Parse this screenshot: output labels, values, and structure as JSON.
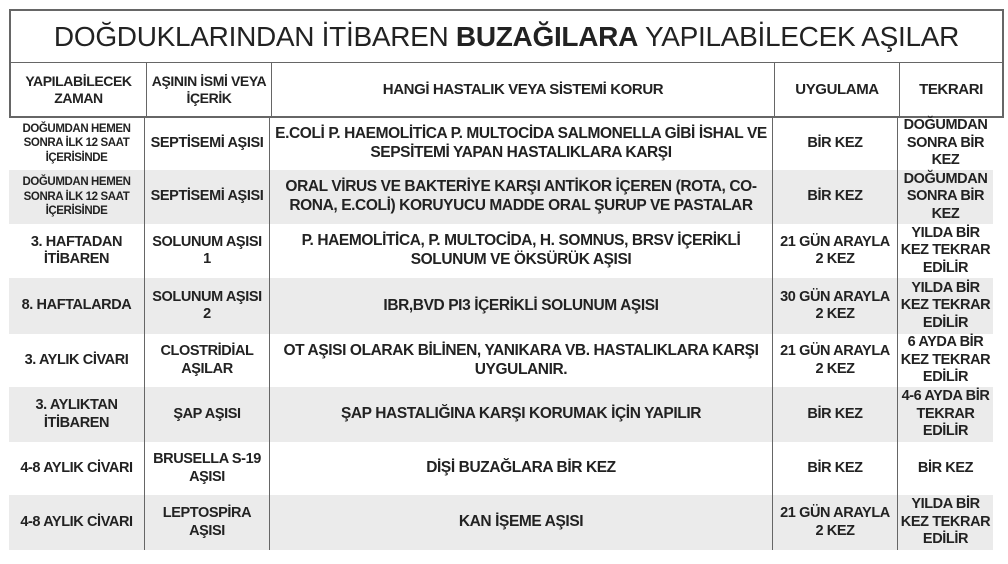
{
  "title": {
    "part1": "DOĞDUKLARINDAN İTİBAREN ",
    "bold": "BUZAĞILARA",
    "part2": " YAPILABİLECEK AŞILAR"
  },
  "columns": {
    "zaman": "YAPILABİLECEK ZAMAN",
    "asi": "AŞININ İSMİ VEYA İÇERİK",
    "hastalik": "HANGİ HASTALIK VEYA SİSTEMİ KORUR",
    "uygulama": "UYGULAMA",
    "tekrar": "TEKRARI"
  },
  "rows": [
    {
      "zaman": "DOĞUMDAN HEMEN SONRA İLK 12 SAAT İÇERİSİNDE",
      "asi": "SEPTİSEMİ AŞISI",
      "hastalik": "E.COLİ P. HAEMOLİTİCA P. MULTOCİDA SALMONELLA GİBİ İSHAL VE SEPSİTEMİ YAPAN HASTALIKLARA KARŞI",
      "uygulama": "BİR KEZ",
      "tekrar": "DOĞUMDAN SONRA BİR KEZ"
    },
    {
      "zaman": "DOĞUMDAN HEMEN SONRA İLK 12 SAAT İÇERİSİNDE",
      "asi": "SEPTİSEMİ AŞISI",
      "hastalik": "ORAL VİRUS VE BAKTERİYE KARŞI ANTİKOR İÇEREN (ROTA, CO-RONA, E.COLİ) KORUYUCU MADDE ORAL ŞURUP VE PASTALAR",
      "uygulama": "BİR KEZ",
      "tekrar": "DOĞUMDAN SONRA BİR KEZ"
    },
    {
      "zaman": "3. HAFTADAN İTİBAREN",
      "asi": "SOLUNUM AŞISI 1",
      "hastalik": "P. HAEMOLİTİCA, P. MULTOCİDA, H. SOMNUS, BRSV İÇERİKLİ SOLUNUM VE ÖKSÜRÜK AŞISI",
      "uygulama": "21 GÜN ARAYLA 2 KEZ",
      "tekrar": "YILDA BİR KEZ TEKRAR EDİLİR"
    },
    {
      "zaman": "8. HAFTALARDA",
      "asi": "SOLUNUM AŞISI 2",
      "hastalik": "IBR,BVD PI3 İÇERİKLİ SOLUNUM AŞISI",
      "uygulama": "30 GÜN ARAYLA 2 KEZ",
      "tekrar": "YILDA BİR KEZ TEKRAR EDİLİR"
    },
    {
      "zaman": "3. AYLIK CİVARI",
      "asi": "CLOSTRİDİAL AŞILAR",
      "hastalik": "OT AŞISI OLARAK BİLİNEN, YANIKARA VB. HASTALIKLARA KARŞI UYGULANIR.",
      "uygulama": "21 GÜN ARAYLA 2 KEZ",
      "tekrar": "6 AYDA BİR KEZ TEKRAR EDİLİR"
    },
    {
      "zaman": "3. AYLIKTAN İTİBAREN",
      "asi": "ŞAP AŞISI",
      "hastalik": "ŞAP HASTALIĞINA KARŞI KORUMAK İÇİN YAPILIR",
      "uygulama": "BİR KEZ",
      "tekrar": "4-6 AYDA BİR TEKRAR EDİLİR"
    },
    {
      "zaman": "4-8 AYLIK CİVARI",
      "asi": "BRUSELLA S-19 AŞISI",
      "hastalik": "DİŞİ BUZAĞLARA BİR KEZ",
      "uygulama": "BİR KEZ",
      "tekrar": "BİR KEZ"
    },
    {
      "zaman": "4-8 AYLIK CİVARI",
      "asi": "LEPTOSPİRA AŞISI",
      "hastalik": "KAN İŞEME AŞISI",
      "uygulama": "21 GÜN ARAYLA 2 KEZ",
      "tekrar": "YILDA BİR KEZ TEKRAR EDİLİR"
    }
  ],
  "colors": {
    "border": "#666666",
    "stripe": "#ebebeb",
    "text": "#222222"
  }
}
